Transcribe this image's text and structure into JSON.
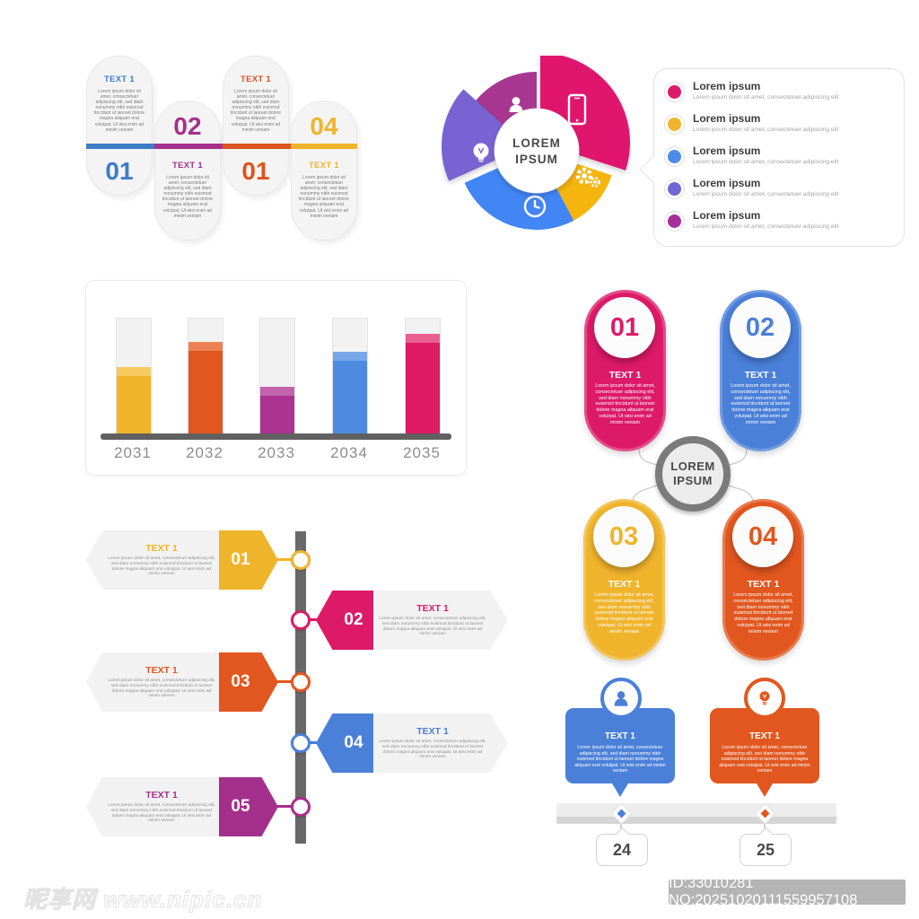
{
  "texts": {
    "item_title": "TEXT 1",
    "brand_line1": "LOREM",
    "brand_line2": "IPSUM",
    "legend_title": "Lorem ipsum",
    "lorem_long": "Lorem ipsum dolor sit amet, consectetuer adipiscing elit, sed diam nonummy nibh euismod tincidunt ut laoreet dolore magna aliquam erat volutpat. Ut wisi enim ad minim veniam",
    "lorem_short": "Lorem ipsum dolor sit amet, consectetuer adipiscing elit"
  },
  "capsule_timeline": {
    "items": [
      {
        "number": "01",
        "color": "#3D7CC9",
        "position": "up"
      },
      {
        "number": "02",
        "color": "#A5308C",
        "position": "down"
      },
      {
        "number": "01",
        "color": "#DB541E",
        "position": "up"
      },
      {
        "number": "04",
        "color": "#F0B42C",
        "position": "down"
      }
    ]
  },
  "pie_infographic": {
    "center_label": "LOREM IPSUM",
    "wedges": [
      {
        "icon": "smartphone-icon",
        "color": "#E0196E"
      },
      {
        "icon": "gears-icon",
        "color": "#F5B40E"
      },
      {
        "icon": "clock-icon",
        "color": "#4285F4"
      },
      {
        "icon": "lightbulb-icon",
        "color": "#7763D2"
      },
      {
        "icon": "person-icon",
        "color": "#A73790"
      }
    ],
    "legend": {
      "items": [
        {
          "color": "#DD1A68"
        },
        {
          "color": "#F0B42C"
        },
        {
          "color": "#4C8BE8"
        },
        {
          "color": "#7265D6"
        },
        {
          "color": "#A5309A"
        }
      ]
    }
  },
  "chart_data": {
    "type": "bar",
    "categories": [
      "2031",
      "2032",
      "2033",
      "2034",
      "2035"
    ],
    "values": [
      59,
      80,
      42,
      72,
      87
    ],
    "ylim": [
      0,
      100
    ],
    "unit": "% of track height",
    "colors": [
      "#F2B32C",
      "#E2571F",
      "#AB3392",
      "#4C8BE0",
      "#DD1A64"
    ],
    "cap_colors": [
      "#F6CA5E",
      "#EC8254",
      "#C463AE",
      "#77A7E8",
      "#EA5E91"
    ],
    "title": "",
    "xlabel": "",
    "ylabel": "",
    "grid": false,
    "legend_position": "none"
  },
  "capsule_diagram": {
    "center_label": "LOREM IPSUM",
    "items": [
      {
        "number": "01",
        "color": "#DD1A68"
      },
      {
        "number": "02",
        "color": "#4B80D9"
      },
      {
        "number": "03",
        "color": "#F0B42C"
      },
      {
        "number": "04",
        "color": "#E2571F"
      }
    ]
  },
  "arrow_timeline": {
    "items": [
      {
        "number": "01",
        "color": "#F0B42C",
        "side": "left"
      },
      {
        "number": "02",
        "color": "#DD1A68",
        "side": "right"
      },
      {
        "number": "03",
        "color": "#E2571F",
        "side": "left"
      },
      {
        "number": "04",
        "color": "#4B80D9",
        "side": "right"
      },
      {
        "number": "05",
        "color": "#A5308C",
        "side": "left"
      }
    ]
  },
  "bubble_timeline": {
    "items": [
      {
        "icon": "person-icon",
        "color": "#4B80D9",
        "day": "24"
      },
      {
        "icon": "lightbulb-icon",
        "color": "#E2571F",
        "day": "25"
      }
    ]
  },
  "watermark": {
    "site_text": "昵享网 www.nipic.cn",
    "id_text": "ID:33010281 NO:20251020111559957108"
  }
}
